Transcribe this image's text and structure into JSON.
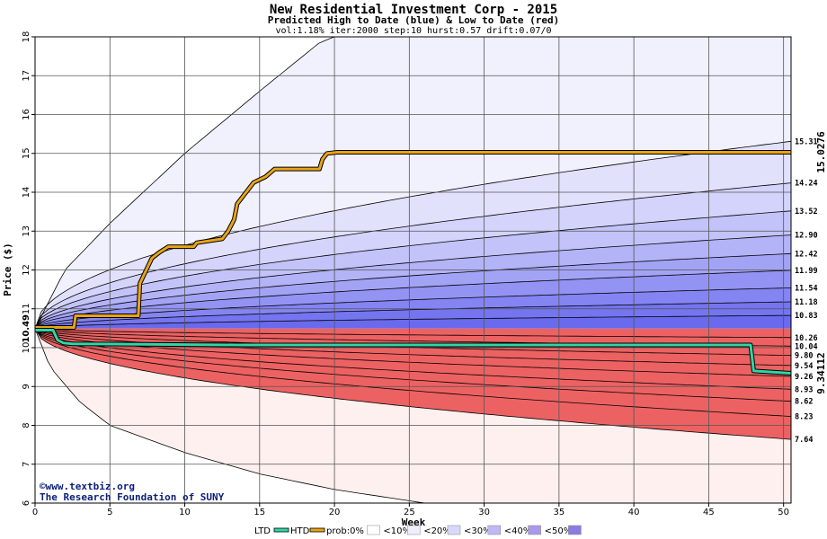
{
  "chart_data": {
    "type": "area",
    "title": "New Residential Investment Corp - 2015",
    "subtitle": "Predicted High to Date (blue) &  Low to Date (red)",
    "params": "vol:1.18% iter:2000 step:10 hurst:0.57 drift:0.07/0",
    "xlabel": "Week",
    "ylabel": "Price ($)",
    "xlim": [
      0,
      50.5
    ],
    "ylim": [
      6,
      18
    ],
    "x_ticks": [
      "0",
      "5",
      "10",
      "15",
      "20",
      "25",
      "30",
      "35",
      "40",
      "45",
      "50"
    ],
    "y_ticks": [
      "6",
      "7",
      "8",
      "9",
      "10",
      "11",
      "12",
      "13",
      "14",
      "15",
      "16",
      "17",
      "18"
    ],
    "grid": true,
    "start_price": "10.49",
    "start_value": 10.49,
    "high_band_end_labels": [
      "15.31",
      "14.24",
      "13.52",
      "12.90",
      "12.42",
      "11.99",
      "11.54",
      "11.18",
      "10.83"
    ],
    "high_band_end_values": [
      15.31,
      14.24,
      13.52,
      12.9,
      12.42,
      11.99,
      11.54,
      11.18,
      10.83
    ],
    "low_band_end_labels": [
      "10.26",
      "10.04",
      "9.80",
      "9.54",
      "9.26",
      "8.93",
      "8.62",
      "8.23",
      "7.64"
    ],
    "low_band_end_values": [
      10.26,
      10.04,
      9.8,
      9.54,
      9.26,
      8.93,
      8.62,
      8.23,
      7.64
    ],
    "band_outer": {
      "high": [
        [
          0,
          10.49
        ],
        [
          2,
          12.0
        ],
        [
          5,
          13.2
        ],
        [
          10,
          15.0
        ],
        [
          15,
          16.6
        ],
        [
          19,
          17.85
        ],
        [
          20,
          18.0
        ]
      ],
      "low": [
        [
          0,
          10.49
        ],
        [
          1,
          9.5
        ],
        [
          3,
          8.6
        ],
        [
          5,
          8.0
        ],
        [
          10,
          7.3
        ],
        [
          15,
          6.75
        ],
        [
          20,
          6.35
        ],
        [
          26,
          6.0
        ]
      ]
    },
    "htd_line": {
      "name": "HTD",
      "end_label": "15.0276",
      "points": [
        [
          0,
          10.52
        ],
        [
          2.6,
          10.52
        ],
        [
          2.7,
          10.82
        ],
        [
          6.9,
          10.82
        ],
        [
          7.0,
          11.65
        ],
        [
          7.8,
          12.3
        ],
        [
          8.3,
          12.45
        ],
        [
          8.9,
          12.6
        ],
        [
          10.6,
          12.6
        ],
        [
          10.8,
          12.7
        ],
        [
          12.5,
          12.8
        ],
        [
          12.9,
          13.0
        ],
        [
          13.3,
          13.3
        ],
        [
          13.5,
          13.7
        ],
        [
          14.1,
          14.0
        ],
        [
          14.6,
          14.25
        ],
        [
          15.4,
          14.4
        ],
        [
          16.0,
          14.6
        ],
        [
          19.0,
          14.6
        ],
        [
          19.2,
          14.85
        ],
        [
          19.5,
          15.0
        ],
        [
          20.2,
          15.03
        ],
        [
          50.5,
          15.03
        ]
      ],
      "color": "#e8a317"
    },
    "ltd_line": {
      "name": "LTD",
      "end_label": "9.34112",
      "points": [
        [
          0,
          10.45
        ],
        [
          1.2,
          10.45
        ],
        [
          1.5,
          10.2
        ],
        [
          1.9,
          10.12
        ],
        [
          2.5,
          10.1
        ],
        [
          13.5,
          10.07
        ],
        [
          35,
          10.07
        ],
        [
          47.8,
          10.07
        ],
        [
          48.0,
          9.4
        ],
        [
          50.5,
          9.34
        ]
      ],
      "color": "#2fd6a6"
    },
    "legend": [
      {
        "label": "LTD",
        "color": "#2fd6a6"
      },
      {
        "label": "HTD",
        "color": "#e8a317"
      },
      {
        "label": "prob:0%",
        "color": "#ffffff"
      },
      {
        "label": "<10%",
        "color": "#eeeeff"
      },
      {
        "label": "<20%",
        "color": "#d8d8fb"
      },
      {
        "label": "<30%",
        "color": "#c0b8f4"
      },
      {
        "label": "<40%",
        "color": "#aa98ea"
      },
      {
        "label": "<50%",
        "color": "#8a7ce0"
      }
    ],
    "colors": {
      "high_bands": [
        "#f1f1fe",
        "#e1e1fc",
        "#d3d3fb",
        "#c3c3f9",
        "#b3b3f8",
        "#a3a3f6",
        "#9393f4",
        "#8484f2",
        "#7575ef",
        "#6a6aee"
      ],
      "low_bands": [
        "#fdf0ef",
        "#fbdada",
        "#f9c6c6",
        "#f8b4b4",
        "#f6a2a2",
        "#f39090",
        "#f07f7f",
        "#ee6e6e",
        "#ec6262"
      ],
      "end_label_htd": "#c58a00",
      "end_label_ltd": "#118a5f",
      "start_label": "#1a7a2a"
    },
    "credit_line1": "©www.textbiz.org",
    "credit_line2": "The Research Foundation of SUNY"
  }
}
